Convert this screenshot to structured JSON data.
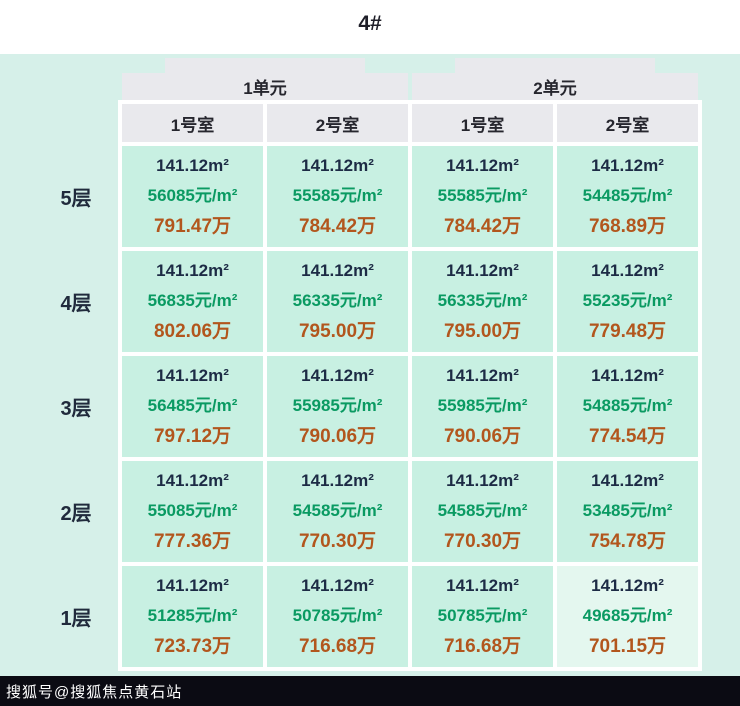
{
  "chart_data": {
    "type": "table",
    "title": "4#",
    "column_groups": [
      "1单元",
      "2单元"
    ],
    "columns": [
      "1号室",
      "2号室",
      "1号室",
      "2号室"
    ],
    "rows": [
      {
        "floor": "5层",
        "cells": [
          {
            "area": "141.12m²",
            "price": "56085元/m²",
            "total": "791.47万"
          },
          {
            "area": "141.12m²",
            "price": "55585元/m²",
            "total": "784.42万"
          },
          {
            "area": "141.12m²",
            "price": "55585元/m²",
            "total": "784.42万"
          },
          {
            "area": "141.12m²",
            "price": "54485元/m²",
            "total": "768.89万"
          }
        ]
      },
      {
        "floor": "4层",
        "cells": [
          {
            "area": "141.12m²",
            "price": "56835元/m²",
            "total": "802.06万"
          },
          {
            "area": "141.12m²",
            "price": "56335元/m²",
            "total": "795.00万"
          },
          {
            "area": "141.12m²",
            "price": "56335元/m²",
            "total": "795.00万"
          },
          {
            "area": "141.12m²",
            "price": "55235元/m²",
            "total": "779.48万"
          }
        ]
      },
      {
        "floor": "3层",
        "cells": [
          {
            "area": "141.12m²",
            "price": "56485元/m²",
            "total": "797.12万"
          },
          {
            "area": "141.12m²",
            "price": "55985元/m²",
            "total": "790.06万"
          },
          {
            "area": "141.12m²",
            "price": "55985元/m²",
            "total": "790.06万"
          },
          {
            "area": "141.12m²",
            "price": "54885元/m²",
            "total": "774.54万"
          }
        ]
      },
      {
        "floor": "2层",
        "cells": [
          {
            "area": "141.12m²",
            "price": "55085元/m²",
            "total": "777.36万"
          },
          {
            "area": "141.12m²",
            "price": "54585元/m²",
            "total": "770.30万"
          },
          {
            "area": "141.12m²",
            "price": "54585元/m²",
            "total": "770.30万"
          },
          {
            "area": "141.12m²",
            "price": "53485元/m²",
            "total": "754.78万"
          }
        ]
      },
      {
        "floor": "1层",
        "cells": [
          {
            "area": "141.12m²",
            "price": "51285元/m²",
            "total": "723.73万"
          },
          {
            "area": "141.12m²",
            "price": "50785元/m²",
            "total": "716.68万"
          },
          {
            "area": "141.12m²",
            "price": "50785元/m²",
            "total": "716.68万"
          },
          {
            "area": "141.12m²",
            "price": "49685元/m²",
            "total": "701.15万"
          }
        ]
      }
    ]
  },
  "watermark": "搜狐号@搜狐焦点黄石站",
  "colors": {
    "page_tint": "#d6f0e9",
    "header_bg": "#e9e9ed",
    "cell_bg": "#c8f0e2",
    "cell_bg_light": "#e4f7ef",
    "area_text": "#1d2b45",
    "unit_price_text": "#0a9a62",
    "total_price_text": "#b2561d",
    "watermark_bg": "#0b0b13",
    "watermark_text": "#ffffff"
  }
}
